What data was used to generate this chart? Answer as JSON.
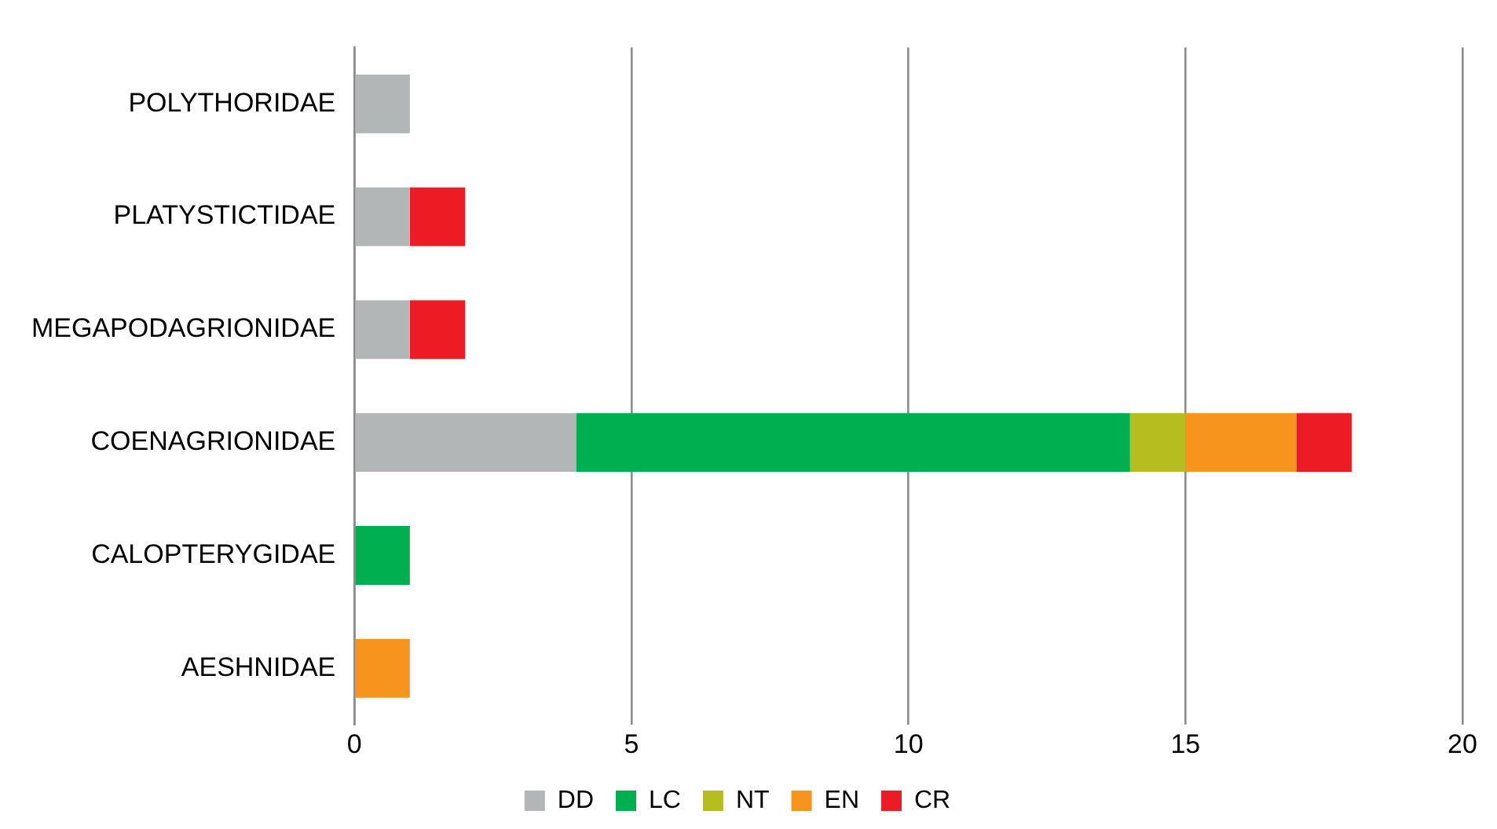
{
  "chart_data": {
    "type": "bar",
    "orientation": "horizontal",
    "stacked": true,
    "categories": [
      "POLYTHORIDAE",
      "PLATYSTICTIDAE",
      "MEGAPODAGRIONIDAE",
      "COENAGRIONIDAE",
      "CALOPTERYGIDAE",
      "AESHNIDAE"
    ],
    "series": [
      {
        "name": "DD",
        "color": "#b3b6b7",
        "values": [
          1,
          1,
          1,
          4,
          0,
          0
        ]
      },
      {
        "name": "LC",
        "color": "#00b050",
        "values": [
          0,
          0,
          0,
          10,
          1,
          0
        ]
      },
      {
        "name": "NT",
        "color": "#b5bd1f",
        "values": [
          0,
          0,
          0,
          1,
          0,
          0
        ]
      },
      {
        "name": "EN",
        "color": "#f7941d",
        "values": [
          0,
          0,
          0,
          2,
          0,
          1
        ]
      },
      {
        "name": "CR",
        "color": "#ed1c24",
        "values": [
          0,
          1,
          1,
          1,
          0,
          0
        ]
      }
    ],
    "xlim": [
      0,
      20
    ],
    "xticks": [
      0,
      5,
      10,
      15,
      20
    ],
    "grid": "x",
    "legend": "bottom"
  }
}
